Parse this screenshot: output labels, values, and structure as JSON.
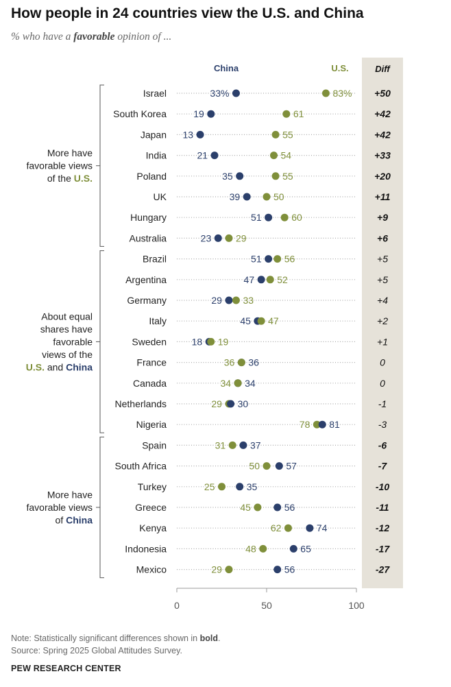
{
  "title": "How people in 24 countries view the U.S. and China",
  "subtitle": {
    "prefix": "% who have a ",
    "emph": "favorable",
    "suffix": " opinion of ..."
  },
  "colors": {
    "china": "#2b3f6b",
    "us": "#7f8f3a",
    "diff_bg": "#e6e2d9",
    "bracket": "#555555",
    "dots": "#aaaaaa"
  },
  "legend": {
    "china": "China",
    "us": "U.S.",
    "diff": "Diff"
  },
  "groups": [
    {
      "lines": [
        [
          {
            "t": "More have",
            "c": "normal"
          }
        ],
        [
          {
            "t": "favorable views",
            "c": "normal"
          }
        ],
        [
          {
            "t": "of the ",
            "c": "normal"
          },
          {
            "t": "U.S.",
            "c": "us"
          }
        ]
      ],
      "from": 0,
      "to": 7
    },
    {
      "lines": [
        [
          {
            "t": "About equal",
            "c": "normal"
          }
        ],
        [
          {
            "t": "shares have",
            "c": "normal"
          }
        ],
        [
          {
            "t": "favorable",
            "c": "normal"
          }
        ],
        [
          {
            "t": "views of the",
            "c": "normal"
          }
        ],
        [
          {
            "t": "U.S.",
            "c": "us"
          },
          {
            "t": " and ",
            "c": "normal"
          },
          {
            "t": "China",
            "c": "china"
          }
        ]
      ],
      "from": 8,
      "to": 16
    },
    {
      "lines": [
        [
          {
            "t": "More have",
            "c": "normal"
          }
        ],
        [
          {
            "t": "favorable views",
            "c": "normal"
          }
        ],
        [
          {
            "t": "of ",
            "c": "normal"
          },
          {
            "t": "China",
            "c": "china"
          }
        ]
      ],
      "from": 17,
      "to": 23
    }
  ],
  "chart_data": {
    "type": "scatter",
    "xlim": [
      0,
      100
    ],
    "xticks": [
      0,
      50,
      100
    ],
    "series": [
      {
        "name": "China",
        "key": "china"
      },
      {
        "name": "U.S.",
        "key": "us"
      }
    ],
    "rows": [
      {
        "country": "Israel",
        "china": 33,
        "us": 83,
        "china_label": "33%",
        "us_label": "83%",
        "diff": "+50",
        "bold": true
      },
      {
        "country": "South Korea",
        "china": 19,
        "us": 61,
        "china_label": "19",
        "us_label": "61",
        "diff": "+42",
        "bold": true
      },
      {
        "country": "Japan",
        "china": 13,
        "us": 55,
        "china_label": "13",
        "us_label": "55",
        "diff": "+42",
        "bold": true
      },
      {
        "country": "India",
        "china": 21,
        "us": 54,
        "china_label": "21",
        "us_label": "54",
        "diff": "+33",
        "bold": true
      },
      {
        "country": "Poland",
        "china": 35,
        "us": 55,
        "china_label": "35",
        "us_label": "55",
        "diff": "+20",
        "bold": true
      },
      {
        "country": "UK",
        "china": 39,
        "us": 50,
        "china_label": "39",
        "us_label": "50",
        "diff": "+11",
        "bold": true
      },
      {
        "country": "Hungary",
        "china": 51,
        "us": 60,
        "china_label": "51",
        "us_label": "60",
        "diff": "+9",
        "bold": true
      },
      {
        "country": "Australia",
        "china": 23,
        "us": 29,
        "china_label": "23",
        "us_label": "29",
        "diff": "+6",
        "bold": true
      },
      {
        "country": "Brazil",
        "china": 51,
        "us": 56,
        "china_label": "51",
        "us_label": "56",
        "diff": "+5",
        "bold": false
      },
      {
        "country": "Argentina",
        "china": 47,
        "us": 52,
        "china_label": "47",
        "us_label": "52",
        "diff": "+5",
        "bold": false
      },
      {
        "country": "Germany",
        "china": 29,
        "us": 33,
        "china_label": "29",
        "us_label": "33",
        "diff": "+4",
        "bold": false
      },
      {
        "country": "Italy",
        "china": 45,
        "us": 47,
        "china_label": "45",
        "us_label": "47",
        "diff": "+2",
        "bold": false
      },
      {
        "country": "Sweden",
        "china": 18,
        "us": 19,
        "china_label": "18",
        "us_label": "19",
        "diff": "+1",
        "bold": false
      },
      {
        "country": "France",
        "china": 36,
        "us": 36,
        "china_label": "36",
        "us_label": "36",
        "diff": "0",
        "bold": false
      },
      {
        "country": "Canada",
        "china": 34,
        "us": 34,
        "china_label": "34",
        "us_label": "34",
        "diff": "0",
        "bold": false
      },
      {
        "country": "Netherlands",
        "china": 30,
        "us": 29,
        "china_label": "30",
        "us_label": "29",
        "diff": "-1",
        "bold": false
      },
      {
        "country": "Nigeria",
        "china": 81,
        "us": 78,
        "china_label": "81",
        "us_label": "78",
        "diff": "-3",
        "bold": false
      },
      {
        "country": "Spain",
        "china": 37,
        "us": 31,
        "china_label": "37",
        "us_label": "31",
        "diff": "-6",
        "bold": true
      },
      {
        "country": "South Africa",
        "china": 57,
        "us": 50,
        "china_label": "57",
        "us_label": "50",
        "diff": "-7",
        "bold": true
      },
      {
        "country": "Turkey",
        "china": 35,
        "us": 25,
        "china_label": "35",
        "us_label": "25",
        "diff": "-10",
        "bold": true
      },
      {
        "country": "Greece",
        "china": 56,
        "us": 45,
        "china_label": "56",
        "us_label": "45",
        "diff": "-11",
        "bold": true
      },
      {
        "country": "Kenya",
        "china": 74,
        "us": 62,
        "china_label": "74",
        "us_label": "62",
        "diff": "-12",
        "bold": true
      },
      {
        "country": "Indonesia",
        "china": 65,
        "us": 48,
        "china_label": "65",
        "us_label": "48",
        "diff": "-17",
        "bold": true
      },
      {
        "country": "Mexico",
        "china": 56,
        "us": 29,
        "china_label": "56",
        "us_label": "29",
        "diff": "-27",
        "bold": true
      }
    ]
  },
  "notes": {
    "note_prefix": "Note: Statistically significant differences shown in ",
    "note_bold": "bold",
    "note_suffix": ".",
    "source": "Source: Spring 2025 Global Attitudes Survey."
  },
  "brand": "PEW RESEARCH CENTER"
}
